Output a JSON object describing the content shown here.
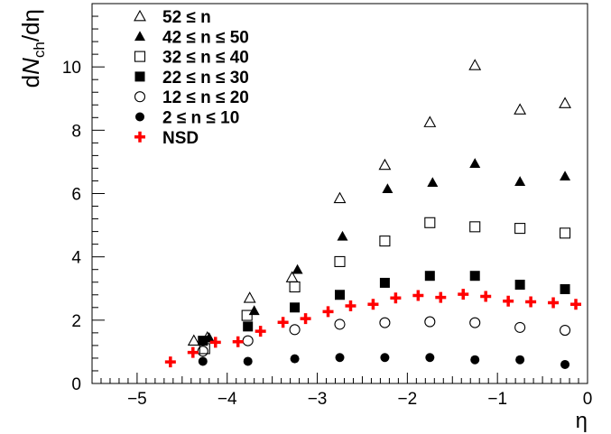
{
  "chart_data": {
    "type": "scatter",
    "xlabel": "η",
    "ylabel": {
      "prefix": "d",
      "N": "N",
      "sub": "ch",
      "suffix": "/dη"
    },
    "xlim": [
      -5.5,
      0
    ],
    "ylim": [
      0,
      12
    ],
    "x_ticks": [
      {
        "value": -5,
        "label": "−5"
      },
      {
        "value": -4,
        "label": "−4"
      },
      {
        "value": -3,
        "label": "−3"
      },
      {
        "value": -2,
        "label": "−2"
      },
      {
        "value": -1,
        "label": "−1"
      },
      {
        "value": 0,
        "label": "0"
      }
    ],
    "y_ticks": [
      {
        "value": 0,
        "label": "0"
      },
      {
        "value": 2,
        "label": "2"
      },
      {
        "value": 4,
        "label": "4"
      },
      {
        "value": 6,
        "label": "6"
      },
      {
        "value": 8,
        "label": "8"
      },
      {
        "value": 10,
        "label": "10"
      }
    ],
    "grid": false,
    "legend_position": "top-left",
    "series": [
      {
        "name": "52 ≤ n",
        "marker": "open-triangle",
        "color": "#000000",
        "points": [
          {
            "x": -4.37,
            "y": 1.35
          },
          {
            "x": -4.22,
            "y": 1.45
          },
          {
            "x": -3.75,
            "y": 2.7
          },
          {
            "x": -3.28,
            "y": 3.35
          },
          {
            "x": -2.75,
            "y": 5.85
          },
          {
            "x": -2.25,
            "y": 6.9
          },
          {
            "x": -1.75,
            "y": 8.25
          },
          {
            "x": -1.25,
            "y": 10.05
          },
          {
            "x": -0.75,
            "y": 8.65
          },
          {
            "x": -0.25,
            "y": 8.85
          }
        ]
      },
      {
        "name": "42 ≤ n ≤ 50",
        "marker": "filled-triangle",
        "color": "#000000",
        "points": [
          {
            "x": -4.2,
            "y": 1.45
          },
          {
            "x": -3.7,
            "y": 2.3
          },
          {
            "x": -3.22,
            "y": 3.6
          },
          {
            "x": -2.72,
            "y": 4.65
          },
          {
            "x": -2.22,
            "y": 6.15
          },
          {
            "x": -1.72,
            "y": 6.35
          },
          {
            "x": -1.25,
            "y": 6.95
          },
          {
            "x": -0.75,
            "y": 6.38
          },
          {
            "x": -0.25,
            "y": 6.55
          }
        ]
      },
      {
        "name": "32 ≤ n ≤ 40",
        "marker": "open-square",
        "color": "#000000",
        "points": [
          {
            "x": -4.25,
            "y": 1.1
          },
          {
            "x": -3.78,
            "y": 2.15
          },
          {
            "x": -3.25,
            "y": 3.05
          },
          {
            "x": -2.75,
            "y": 3.85
          },
          {
            "x": -2.25,
            "y": 4.5
          },
          {
            "x": -1.75,
            "y": 5.08
          },
          {
            "x": -1.25,
            "y": 4.95
          },
          {
            "x": -0.75,
            "y": 4.9
          },
          {
            "x": -0.25,
            "y": 4.75
          }
        ]
      },
      {
        "name": "22 ≤ n ≤ 30",
        "marker": "filled-square",
        "color": "#000000",
        "points": [
          {
            "x": -4.27,
            "y": 1.35
          },
          {
            "x": -3.77,
            "y": 1.8
          },
          {
            "x": -3.25,
            "y": 2.4
          },
          {
            "x": -2.75,
            "y": 2.8
          },
          {
            "x": -2.25,
            "y": 3.18
          },
          {
            "x": -1.75,
            "y": 3.4
          },
          {
            "x": -1.25,
            "y": 3.4
          },
          {
            "x": -0.75,
            "y": 3.12
          },
          {
            "x": -0.25,
            "y": 2.98
          }
        ]
      },
      {
        "name": "12 ≤ n ≤ 20",
        "marker": "open-circle",
        "color": "#000000",
        "points": [
          {
            "x": -4.27,
            "y": 1.02
          },
          {
            "x": -3.77,
            "y": 1.35
          },
          {
            "x": -3.25,
            "y": 1.7
          },
          {
            "x": -2.75,
            "y": 1.87
          },
          {
            "x": -2.25,
            "y": 1.92
          },
          {
            "x": -1.75,
            "y": 1.95
          },
          {
            "x": -1.25,
            "y": 1.92
          },
          {
            "x": -0.75,
            "y": 1.77
          },
          {
            "x": -0.25,
            "y": 1.68
          }
        ]
      },
      {
        "name": "2 ≤ n ≤ 10",
        "marker": "filled-circle",
        "color": "#000000",
        "points": [
          {
            "x": -4.27,
            "y": 0.7
          },
          {
            "x": -3.77,
            "y": 0.7
          },
          {
            "x": -3.25,
            "y": 0.78
          },
          {
            "x": -2.75,
            "y": 0.82
          },
          {
            "x": -2.25,
            "y": 0.82
          },
          {
            "x": -1.75,
            "y": 0.82
          },
          {
            "x": -1.25,
            "y": 0.75
          },
          {
            "x": -0.75,
            "y": 0.75
          },
          {
            "x": -0.25,
            "y": 0.6
          }
        ]
      },
      {
        "name": "NSD",
        "marker": "cross",
        "color": "#ff0000",
        "points": [
          {
            "x": -4.63,
            "y": 0.68
          },
          {
            "x": -4.38,
            "y": 0.98
          },
          {
            "x": -4.13,
            "y": 1.3
          },
          {
            "x": -3.88,
            "y": 1.32
          },
          {
            "x": -3.63,
            "y": 1.65
          },
          {
            "x": -3.38,
            "y": 1.93
          },
          {
            "x": -3.13,
            "y": 2.05
          },
          {
            "x": -2.88,
            "y": 2.27
          },
          {
            "x": -2.63,
            "y": 2.45
          },
          {
            "x": -2.38,
            "y": 2.5
          },
          {
            "x": -2.13,
            "y": 2.7
          },
          {
            "x": -1.88,
            "y": 2.78
          },
          {
            "x": -1.63,
            "y": 2.72
          },
          {
            "x": -1.38,
            "y": 2.82
          },
          {
            "x": -1.13,
            "y": 2.75
          },
          {
            "x": -0.88,
            "y": 2.6
          },
          {
            "x": -0.63,
            "y": 2.58
          },
          {
            "x": -0.38,
            "y": 2.55
          },
          {
            "x": -0.13,
            "y": 2.5
          }
        ]
      }
    ]
  }
}
